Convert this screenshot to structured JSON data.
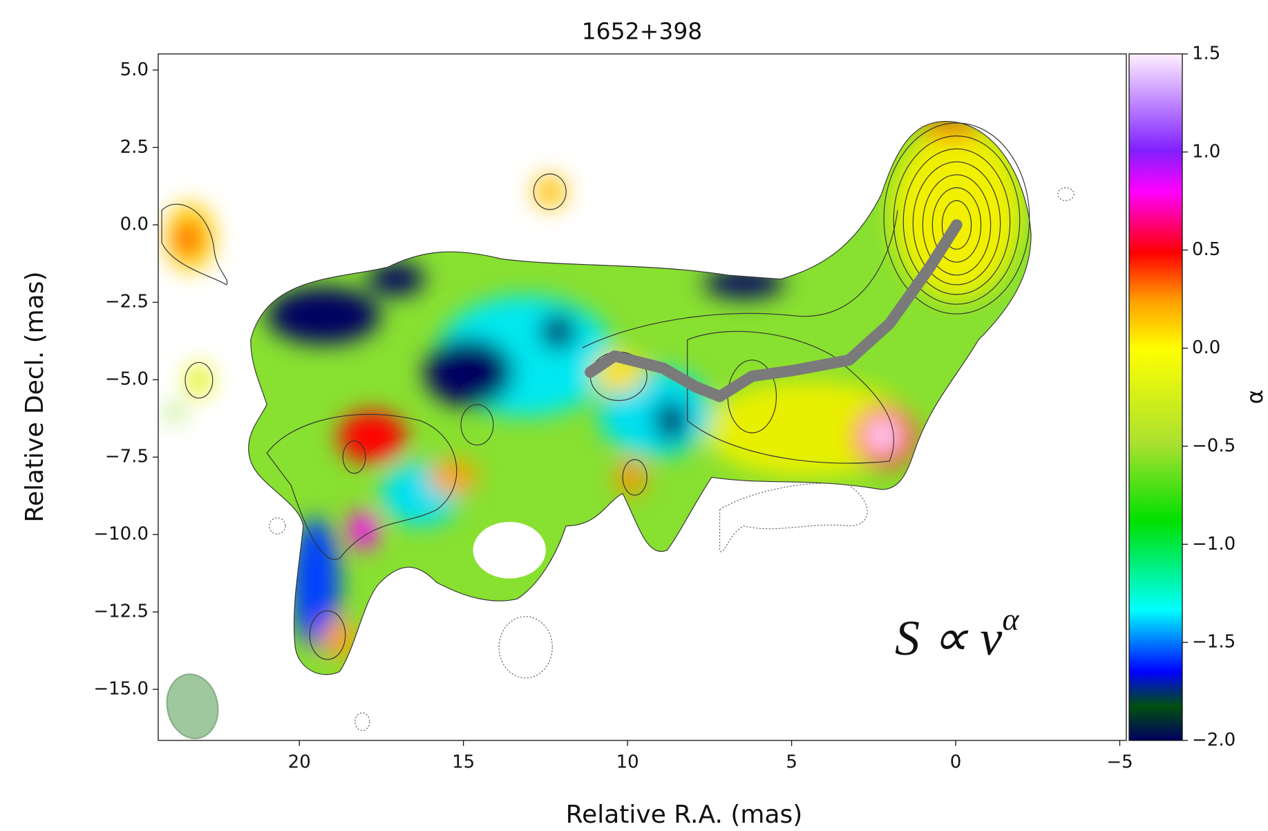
{
  "chart_data": {
    "type": "image",
    "title": "1652+398",
    "xlabel": "Relative R.A. (mas)",
    "ylabel": "Relative Decl. (mas)",
    "xlim": [
      24.3,
      -5.2
    ],
    "xticks": [
      20,
      15,
      10,
      5,
      0,
      {
        "value": -5,
        "label": "−5"
      }
    ],
    "ylim": [
      -16.65,
      5.52
    ],
    "yticks": [
      {
        "value": 5,
        "label": "5.0"
      },
      {
        "value": 2.5,
        "label": "2.5"
      },
      {
        "value": 0,
        "label": "0.0"
      },
      {
        "value": -2.5,
        "label": "−2.5"
      },
      {
        "value": -5,
        "label": "−5.0"
      },
      {
        "value": -7.5,
        "label": "−7.5"
      },
      {
        "value": -10,
        "label": "−10.0"
      },
      {
        "value": -12.5,
        "label": "−12.5"
      },
      {
        "value": -15,
        "label": "−15.0"
      }
    ],
    "colorbar": {
      "label": "α",
      "clim": [
        -2,
        1.5
      ],
      "ticks": [
        {
          "value": 1.5,
          "label": "1.5"
        },
        {
          "value": 1,
          "label": "1.0"
        },
        {
          "value": 0.5,
          "label": "0.5"
        },
        {
          "value": 0,
          "label": "0.0"
        },
        {
          "value": -0.5,
          "label": "−0.5"
        },
        {
          "value": -1,
          "label": "−1.0"
        },
        {
          "value": -1.5,
          "label": "−1.5"
        },
        {
          "value": -2,
          "label": "−2.0"
        }
      ]
    },
    "annotation": {
      "text": "S ∝ ν",
      "superscript": "α"
    }
  }
}
